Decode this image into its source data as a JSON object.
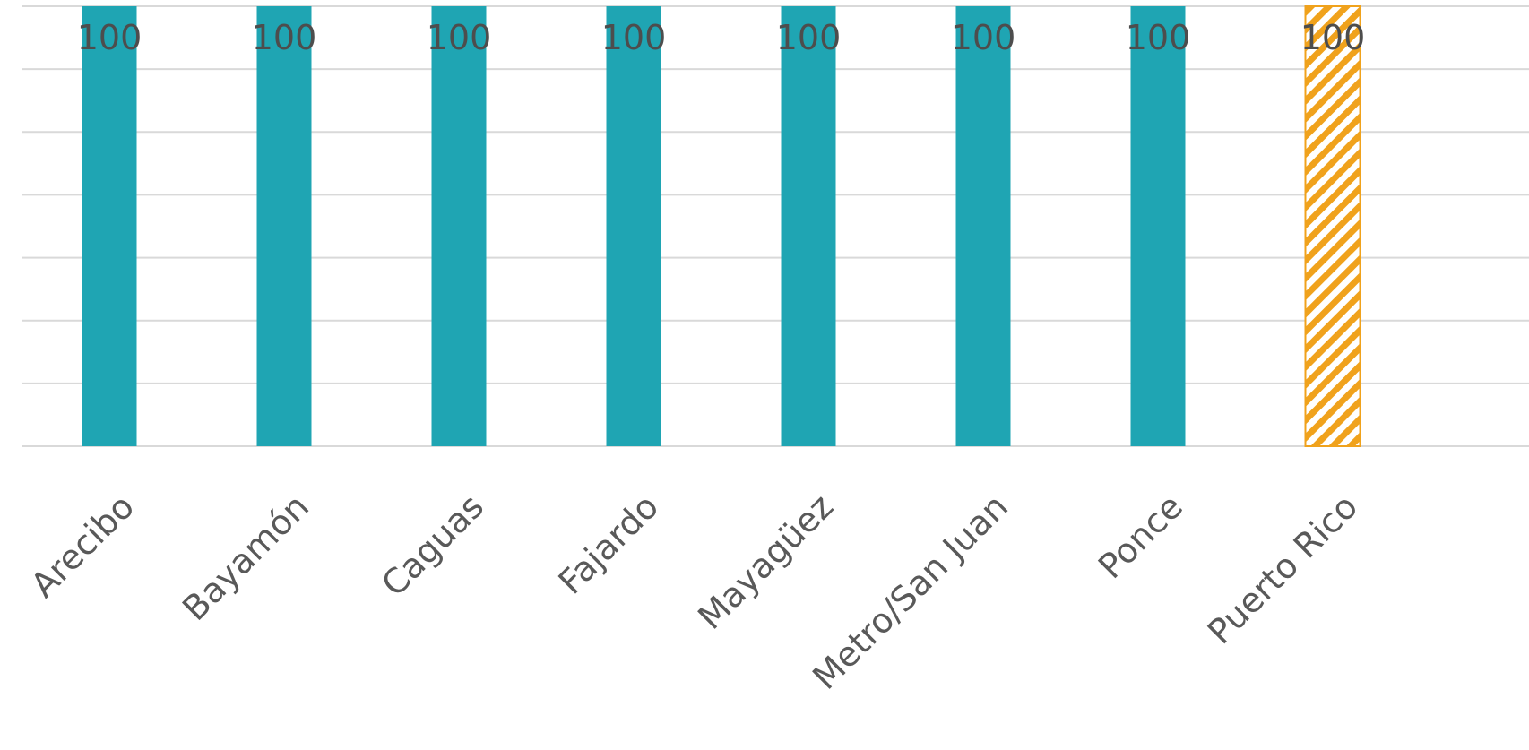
{
  "chart_data": {
    "type": "bar",
    "categories": [
      "Arecibo",
      "Bayamón",
      "Caguas",
      "Fajardo",
      "Mayagüez",
      "Metro/San Juan",
      "Ponce",
      "Puerto Rico"
    ],
    "values": [
      100,
      100,
      100,
      100,
      100,
      100,
      100,
      100
    ],
    "data_labels": [
      "100",
      "100",
      "100",
      "100",
      "100",
      "100",
      "100",
      "100"
    ],
    "highlighted_category": "Puerto Rico",
    "ylim": [
      0,
      100
    ],
    "y_gridlines": 7,
    "grid": true,
    "legend": "none",
    "title": "",
    "xlabel": "",
    "ylabel": "",
    "colors": {
      "bar": "#1fa5b3",
      "highlight": "#f0a21c",
      "highlight_pattern": "diagonal-stripes",
      "grid": "#d9d9d9",
      "data_label": "#4d4d4d",
      "axis_label": "#595959"
    }
  }
}
